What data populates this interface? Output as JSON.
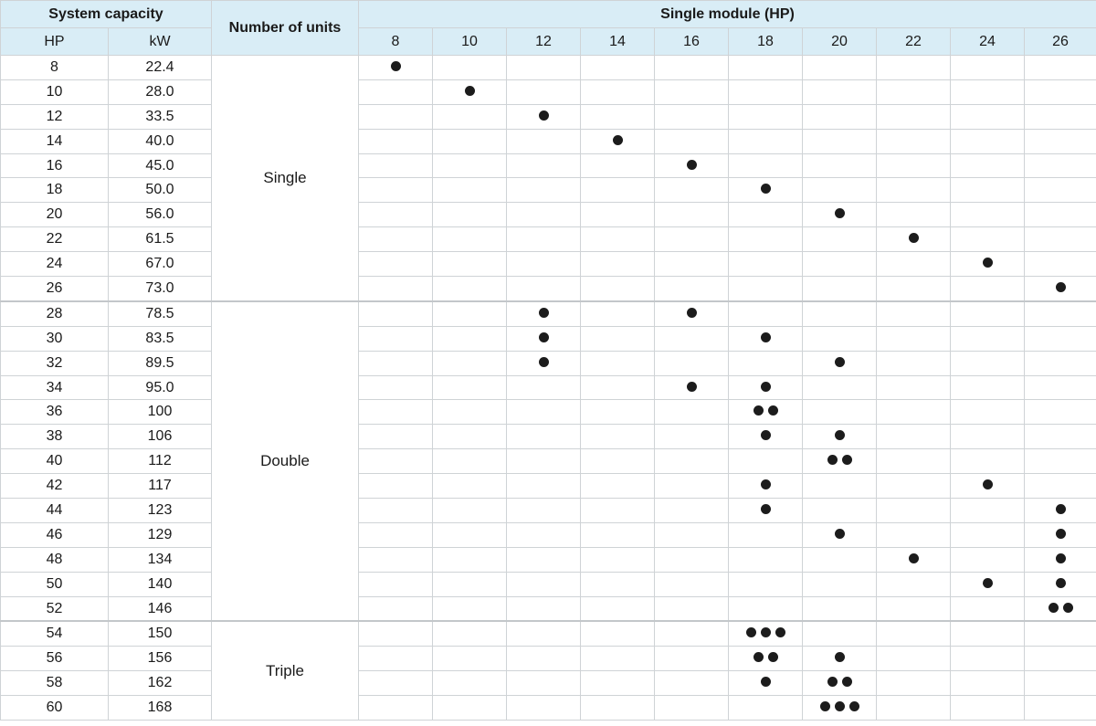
{
  "header": {
    "system_capacity": "System capacity",
    "number_of_units": "Number of units",
    "single_module": "Single module (HP)",
    "hp": "HP",
    "kw": "kW"
  },
  "modules": [
    "8",
    "10",
    "12",
    "14",
    "16",
    "18",
    "20",
    "22",
    "24",
    "26"
  ],
  "groups": [
    {
      "label": "Single",
      "rows": [
        {
          "hp": "8",
          "kw": "22.4",
          "counts": {
            "8": 1
          }
        },
        {
          "hp": "10",
          "kw": "28.0",
          "counts": {
            "10": 1
          }
        },
        {
          "hp": "12",
          "kw": "33.5",
          "counts": {
            "12": 1
          }
        },
        {
          "hp": "14",
          "kw": "40.0",
          "counts": {
            "14": 1
          }
        },
        {
          "hp": "16",
          "kw": "45.0",
          "counts": {
            "16": 1
          }
        },
        {
          "hp": "18",
          "kw": "50.0",
          "counts": {
            "18": 1
          }
        },
        {
          "hp": "20",
          "kw": "56.0",
          "counts": {
            "20": 1
          }
        },
        {
          "hp": "22",
          "kw": "61.5",
          "counts": {
            "22": 1
          }
        },
        {
          "hp": "24",
          "kw": "67.0",
          "counts": {
            "24": 1
          }
        },
        {
          "hp": "26",
          "kw": "73.0",
          "counts": {
            "26": 1
          }
        }
      ]
    },
    {
      "label": "Double",
      "rows": [
        {
          "hp": "28",
          "kw": "78.5",
          "counts": {
            "12": 1,
            "16": 1
          }
        },
        {
          "hp": "30",
          "kw": "83.5",
          "counts": {
            "12": 1,
            "18": 1
          }
        },
        {
          "hp": "32",
          "kw": "89.5",
          "counts": {
            "12": 1,
            "20": 1
          }
        },
        {
          "hp": "34",
          "kw": "95.0",
          "counts": {
            "16": 1,
            "18": 1
          }
        },
        {
          "hp": "36",
          "kw": "100",
          "counts": {
            "18": 2
          }
        },
        {
          "hp": "38",
          "kw": "106",
          "counts": {
            "18": 1,
            "20": 1
          }
        },
        {
          "hp": "40",
          "kw": "112",
          "counts": {
            "20": 2
          }
        },
        {
          "hp": "42",
          "kw": "117",
          "counts": {
            "18": 1,
            "24": 1
          }
        },
        {
          "hp": "44",
          "kw": "123",
          "counts": {
            "18": 1,
            "26": 1
          }
        },
        {
          "hp": "46",
          "kw": "129",
          "counts": {
            "20": 1,
            "26": 1
          }
        },
        {
          "hp": "48",
          "kw": "134",
          "counts": {
            "22": 1,
            "26": 1
          }
        },
        {
          "hp": "50",
          "kw": "140",
          "counts": {
            "24": 1,
            "26": 1
          }
        },
        {
          "hp": "52",
          "kw": "146",
          "counts": {
            "26": 2
          }
        }
      ]
    },
    {
      "label": "Triple",
      "rows": [
        {
          "hp": "54",
          "kw": "150",
          "counts": {
            "18": 3
          }
        },
        {
          "hp": "56",
          "kw": "156",
          "counts": {
            "18": 2,
            "20": 1
          }
        },
        {
          "hp": "58",
          "kw": "162",
          "counts": {
            "18": 1,
            "20": 2
          }
        },
        {
          "hp": "60",
          "kw": "168",
          "counts": {
            "20": 3
          }
        }
      ]
    }
  ]
}
